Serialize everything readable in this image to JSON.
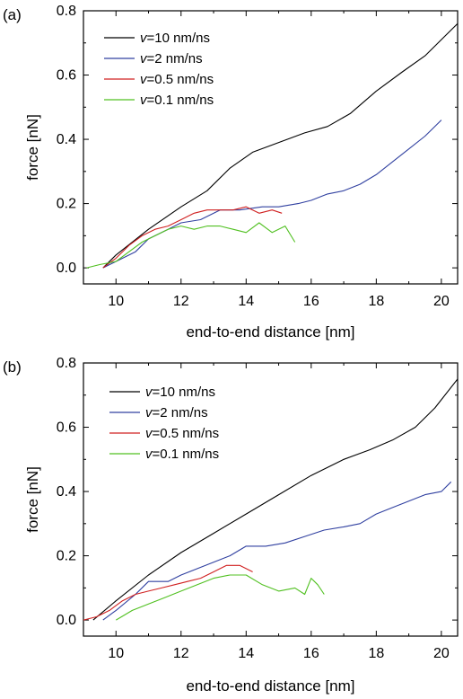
{
  "chart_data": [
    {
      "type": "line",
      "panel_label": "(a)",
      "xlabel": "end-to-end distance [nm]",
      "ylabel": "force [nN]",
      "xlim": [
        9,
        20.5
      ],
      "ylim": [
        -0.05,
        0.8
      ],
      "xticks": [
        10,
        12,
        14,
        16,
        18,
        20
      ],
      "xtick_labels": [
        "10",
        "12",
        "14",
        "16",
        "18",
        "20"
      ],
      "yticks": [
        0.0,
        0.2,
        0.4,
        0.6,
        0.8
      ],
      "ytick_labels": [
        "0.0",
        "0.2",
        "0.4",
        "0.6",
        "0.8"
      ],
      "grid": false,
      "legend_position": "top-left",
      "series": [
        {
          "name": "=10 nm/ns",
          "name_prefix": "v",
          "color": "#000000",
          "x": [
            9.6,
            10,
            11,
            12,
            12.8,
            13.5,
            14.2,
            15,
            15.8,
            16.5,
            17.2,
            18,
            18.8,
            19.5,
            20.2,
            20.5
          ],
          "y": [
            0.0,
            0.04,
            0.12,
            0.19,
            0.24,
            0.31,
            0.36,
            0.39,
            0.42,
            0.44,
            0.48,
            0.55,
            0.61,
            0.66,
            0.73,
            0.76
          ]
        },
        {
          "name": "=2 nm/ns",
          "name_prefix": "v",
          "color": "#3040a0",
          "x": [
            9.6,
            10,
            10.6,
            11,
            11.6,
            12,
            12.6,
            13.2,
            13.8,
            14.5,
            15,
            15.6,
            16,
            16.5,
            17,
            17.5,
            18,
            18.5,
            19,
            19.5,
            20
          ],
          "y": [
            0.0,
            0.02,
            0.05,
            0.09,
            0.12,
            0.14,
            0.15,
            0.18,
            0.18,
            0.19,
            0.19,
            0.2,
            0.21,
            0.23,
            0.24,
            0.26,
            0.29,
            0.33,
            0.37,
            0.41,
            0.46
          ]
        },
        {
          "name": "=0.5 nm/ns",
          "name_prefix": "v",
          "color": "#d02020",
          "x": [
            9.6,
            10,
            10.4,
            10.8,
            11.2,
            11.6,
            12,
            12.4,
            12.8,
            13.2,
            13.6,
            14,
            14.4,
            14.8,
            15.1
          ],
          "y": [
            0.0,
            0.03,
            0.07,
            0.1,
            0.12,
            0.13,
            0.15,
            0.17,
            0.18,
            0.18,
            0.18,
            0.19,
            0.17,
            0.18,
            0.17
          ]
        },
        {
          "name": "=0.1 nm/ns",
          "name_prefix": "v",
          "color": "#50c020",
          "x": [
            9.1,
            9.5,
            10,
            10.4,
            10.8,
            11.2,
            11.6,
            12,
            12.4,
            12.8,
            13.2,
            13.6,
            14,
            14.4,
            14.8,
            15.2,
            15.5
          ],
          "y": [
            0.0,
            0.01,
            0.02,
            0.05,
            0.08,
            0.1,
            0.12,
            0.13,
            0.12,
            0.13,
            0.13,
            0.12,
            0.11,
            0.14,
            0.11,
            0.13,
            0.08
          ]
        }
      ]
    },
    {
      "type": "line",
      "panel_label": "(b)",
      "xlabel": "end-to-end distance [nm]",
      "ylabel": "force [nN]",
      "xlim": [
        9,
        20.5
      ],
      "ylim": [
        -0.05,
        0.8
      ],
      "xticks": [
        10,
        12,
        14,
        16,
        18,
        20
      ],
      "xtick_labels": [
        "10",
        "12",
        "14",
        "16",
        "18",
        "20"
      ],
      "yticks": [
        0.0,
        0.2,
        0.4,
        0.6,
        0.8
      ],
      "ytick_labels": [
        "0.0",
        "0.2",
        "0.4",
        "0.6",
        "0.8"
      ],
      "grid": false,
      "legend_position": "top-left",
      "series": [
        {
          "name": "=10 nm/ns",
          "name_prefix": "v",
          "color": "#000000",
          "x": [
            9.3,
            10,
            11,
            12,
            13,
            14,
            15,
            16,
            17,
            17.8,
            18.5,
            19.2,
            19.8,
            20.5
          ],
          "y": [
            0.0,
            0.06,
            0.14,
            0.21,
            0.27,
            0.33,
            0.39,
            0.45,
            0.5,
            0.53,
            0.56,
            0.6,
            0.66,
            0.75
          ]
        },
        {
          "name": "=2 nm/ns",
          "name_prefix": "v",
          "color": "#3040a0",
          "x": [
            9.6,
            10,
            10.6,
            11,
            11.6,
            12,
            12.5,
            13,
            13.5,
            14,
            14.6,
            15.2,
            15.8,
            16.4,
            17,
            17.5,
            18,
            18.5,
            19,
            19.5,
            20,
            20.3
          ],
          "y": [
            0.0,
            0.03,
            0.08,
            0.12,
            0.12,
            0.14,
            0.16,
            0.18,
            0.2,
            0.23,
            0.23,
            0.24,
            0.26,
            0.28,
            0.29,
            0.3,
            0.33,
            0.35,
            0.37,
            0.39,
            0.4,
            0.43
          ]
        },
        {
          "name": "=0.5 nm/ns",
          "name_prefix": "v",
          "color": "#d02020",
          "x": [
            9.0,
            9.4,
            9.8,
            10.2,
            10.6,
            11,
            11.4,
            11.8,
            12.2,
            12.6,
            13,
            13.4,
            13.8,
            14.2
          ],
          "y": [
            0.0,
            0.01,
            0.03,
            0.06,
            0.08,
            0.09,
            0.1,
            0.11,
            0.12,
            0.13,
            0.15,
            0.17,
            0.17,
            0.15
          ]
        },
        {
          "name": "=0.1 nm/ns",
          "name_prefix": "v",
          "color": "#50c020",
          "x": [
            10.0,
            10.5,
            11,
            11.5,
            12,
            12.5,
            13,
            13.5,
            14,
            14.5,
            15,
            15.5,
            15.8,
            16,
            16.2,
            16.4
          ],
          "y": [
            0.0,
            0.03,
            0.05,
            0.07,
            0.09,
            0.11,
            0.13,
            0.14,
            0.14,
            0.11,
            0.09,
            0.1,
            0.08,
            0.13,
            0.11,
            0.08
          ]
        }
      ]
    }
  ]
}
